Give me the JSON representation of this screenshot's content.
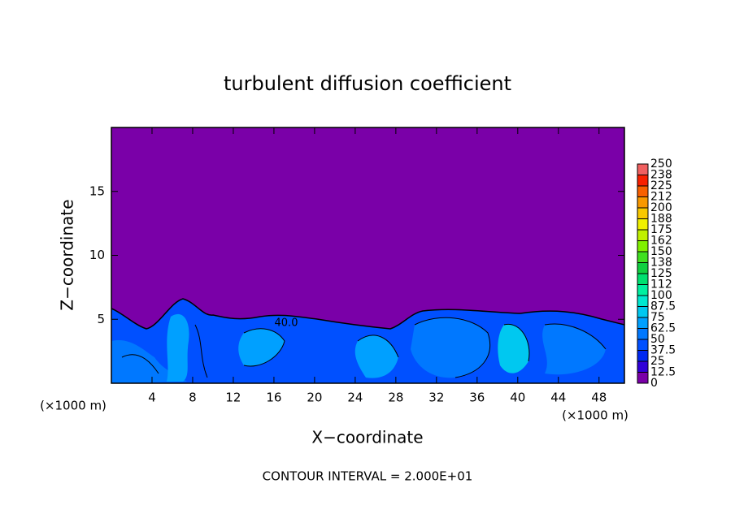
{
  "chart_data": {
    "type": "contour",
    "title": "turbulent diffusion coefficient",
    "x_label": "X−coordinate",
    "y_label": "Z−coordinate",
    "x_unit": "(×1000 m)",
    "footer": "CONTOUR INTERVAL = 2.000E+01",
    "annotation": "40.0",
    "xlim": [
      0,
      50.5
    ],
    "xticks": [
      4,
      8,
      12,
      16,
      20,
      24,
      28,
      32,
      36,
      40,
      44,
      48
    ],
    "ylim": [
      0,
      20
    ],
    "yticks": [
      5,
      10,
      15
    ],
    "colorbar": {
      "levels": [
        0,
        12.5,
        25,
        37.5,
        50,
        62.5,
        75,
        87.5,
        100,
        112,
        125,
        138,
        150,
        162,
        175,
        188,
        200,
        212,
        225,
        238,
        250
      ],
      "colors": [
        "#7a00a8",
        "#3000d8",
        "#0028f0",
        "#0050ff",
        "#0078ff",
        "#00a0ff",
        "#00c8f0",
        "#00e8d0",
        "#00f0a0",
        "#00e070",
        "#10d040",
        "#40e020",
        "#80f000",
        "#c0f000",
        "#f0f000",
        "#f8c800",
        "#f89800",
        "#f86000",
        "#f82000",
        "#f06060"
      ]
    }
  }
}
